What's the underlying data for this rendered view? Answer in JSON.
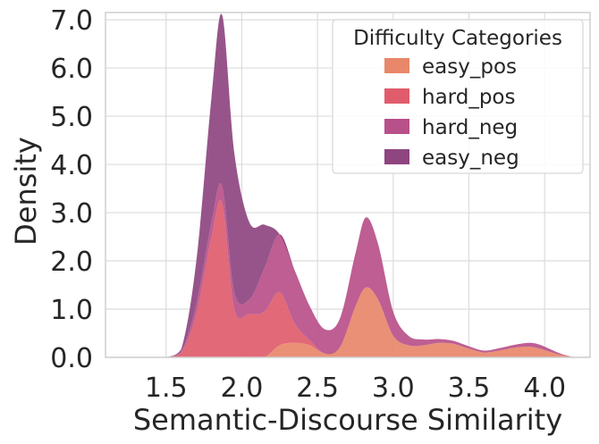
{
  "chart_data": {
    "type": "area",
    "title": "",
    "xlabel": "Semantic-Discourse Similarity",
    "ylabel": "Density",
    "xlim": [
      1.1,
      4.3
    ],
    "ylim": [
      0.0,
      7.15
    ],
    "xticks": [
      1.5,
      2.0,
      2.5,
      3.0,
      3.5,
      4.0
    ],
    "xtick_labels": [
      "1.5",
      "2.0",
      "2.5",
      "3.0",
      "3.5",
      "4.0"
    ],
    "yticks": [
      0,
      1,
      2,
      3,
      4,
      5,
      6,
      7
    ],
    "ytick_labels": [
      "0.0",
      "1.0",
      "2.0",
      "3.0",
      "4.0",
      "5.0",
      "6.0",
      "7.0"
    ],
    "grid": true,
    "stacked": true,
    "legend": {
      "title": "Difficulty Categories",
      "position": "top-right"
    },
    "series": [
      {
        "name": "easy_pos",
        "color": "#e8876a",
        "x": [
          1.5,
          1.6,
          1.7,
          1.8,
          1.87,
          1.95,
          2.05,
          2.15,
          2.25,
          2.35,
          2.45,
          2.55,
          2.65,
          2.75,
          2.82,
          2.9,
          3.0,
          3.1,
          3.2,
          3.3,
          3.4,
          3.5,
          3.6,
          3.7,
          3.8,
          3.9,
          3.97,
          4.05,
          4.12,
          4.2
        ],
        "values": [
          0,
          0,
          0,
          0,
          0,
          0,
          0,
          0,
          0.25,
          0.3,
          0.25,
          0.08,
          0.22,
          1.05,
          1.45,
          1.2,
          0.45,
          0.25,
          0.25,
          0.3,
          0.28,
          0.18,
          0.1,
          0.14,
          0.2,
          0.22,
          0.18,
          0.1,
          0.04,
          0
        ]
      },
      {
        "name": "hard_pos",
        "color": "#e05c6c",
        "x": [
          1.5,
          1.6,
          1.7,
          1.8,
          1.87,
          1.95,
          2.05,
          2.15,
          2.25,
          2.35,
          2.45,
          2.55,
          2.65,
          2.75,
          2.82,
          2.9,
          3.0,
          3.1,
          3.2,
          3.3,
          3.4,
          3.5,
          3.6,
          3.7,
          3.8,
          3.9,
          3.97,
          4.05,
          4.12,
          4.2
        ],
        "values": [
          0,
          0.1,
          0.9,
          2.5,
          3.2,
          1.0,
          0.9,
          0.95,
          1.1,
          0.4,
          0.1,
          0,
          0,
          0,
          0,
          0,
          0,
          0,
          0,
          0,
          0,
          0,
          0,
          0,
          0,
          0,
          0,
          0,
          0,
          0
        ]
      },
      {
        "name": "hard_neg",
        "color": "#b8508a",
        "x": [
          1.5,
          1.6,
          1.7,
          1.8,
          1.87,
          1.95,
          2.05,
          2.15,
          2.25,
          2.35,
          2.45,
          2.55,
          2.65,
          2.75,
          2.82,
          2.9,
          3.0,
          3.1,
          3.2,
          3.3,
          3.4,
          3.5,
          3.6,
          3.7,
          3.8,
          3.9,
          3.97,
          4.05,
          4.12,
          4.2
        ],
        "values": [
          0,
          0.02,
          0.2,
          0.3,
          0.35,
          0.35,
          0.3,
          0.9,
          1.2,
          1.1,
          0.7,
          0.5,
          0.6,
          1.1,
          1.45,
          1.15,
          0.5,
          0.2,
          0.12,
          0.08,
          0.06,
          0.05,
          0.04,
          0.05,
          0.06,
          0.08,
          0.08,
          0.05,
          0.02,
          0
        ]
      },
      {
        "name": "easy_neg",
        "color": "#8e4580",
        "x": [
          1.5,
          1.6,
          1.7,
          1.8,
          1.87,
          1.95,
          2.05,
          2.15,
          2.25,
          2.35,
          2.45,
          2.55,
          2.65,
          2.75,
          2.82,
          2.9,
          3.0,
          3.1,
          3.2,
          3.3,
          3.4,
          3.5,
          3.6,
          3.7,
          3.8,
          3.9,
          3.97,
          4.05,
          4.12,
          4.2
        ],
        "values": [
          0,
          0.05,
          0.9,
          2.6,
          3.55,
          2.9,
          1.6,
          0.9,
          0,
          0,
          0,
          0,
          0,
          0,
          0,
          0,
          0,
          0,
          0,
          0,
          0,
          0,
          0,
          0,
          0,
          0,
          0,
          0,
          0,
          0
        ]
      }
    ]
  }
}
